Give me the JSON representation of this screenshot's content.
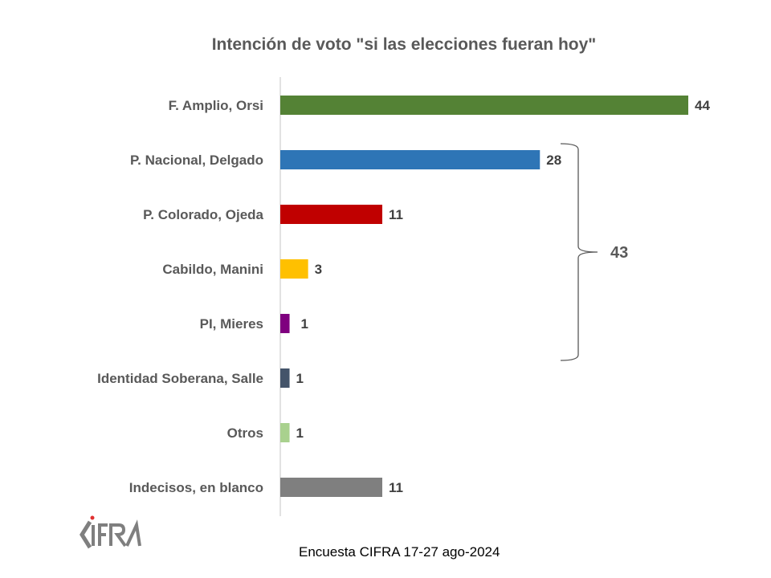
{
  "chart_data": {
    "type": "bar",
    "orientation": "horizontal",
    "title": "Intención de voto \"si las elecciones fueran hoy\"",
    "categories": [
      "F. Amplio, Orsi",
      "P. Nacional, Delgado",
      "P. Colorado, Ojeda",
      "Cabildo, Manini",
      "PI, Mieres",
      "Identidad Soberana, Salle",
      "Otros",
      "Indecisos, en blanco"
    ],
    "values": [
      44,
      28,
      11,
      3,
      1,
      1,
      1,
      11
    ],
    "value_labels": [
      "44",
      "28",
      "11",
      "3",
      "1",
      "1",
      "1",
      "11"
    ],
    "colors": [
      "#548235",
      "#2E75B6",
      "#C00000",
      "#FFC000",
      "#7F007F",
      "#44546A",
      "#A9D18E",
      "#7F7F7F"
    ],
    "xlim": [
      0,
      44
    ],
    "grid": false,
    "annotation": {
      "text": "43",
      "groups": [
        "P. Nacional, Delgado",
        "P. Colorado, Ojeda",
        "Cabildo, Manini",
        "PI, Mieres"
      ]
    }
  },
  "footer": {
    "source": "Encuesta CIFRA 17-27 ago-2024"
  },
  "logo": {
    "text": "CIFRA"
  }
}
